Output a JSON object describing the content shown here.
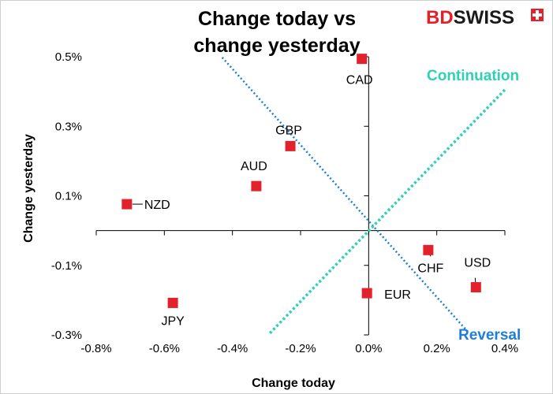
{
  "brand": {
    "logo_prefix": "BD",
    "logo_suffix": "SWISS",
    "logo_color": "#e3212a"
  },
  "chart_data": {
    "type": "scatter",
    "title_lines": [
      "Change today vs",
      "change yesterday"
    ],
    "xlabel": "Change today",
    "ylabel": "Change yesterday",
    "xlim": [
      -0.8,
      0.4
    ],
    "ylim": [
      -0.3,
      0.5
    ],
    "xticks": [
      -0.8,
      -0.6,
      -0.4,
      -0.2,
      0.0,
      0.2,
      0.4
    ],
    "xtick_labels": [
      "-0.8%",
      "-0.6%",
      "-0.4%",
      "-0.2%",
      "0.0%",
      "0.2%",
      "0.4%"
    ],
    "yticks": [
      0.5,
      0.3,
      0.1,
      -0.1,
      -0.3
    ],
    "ytick_labels": [
      "0.5%",
      "0.3%",
      "0.1%",
      "-0.1%",
      "-0.3%"
    ],
    "marker_color": "#e3212a",
    "points": [
      {
        "label": "CAD",
        "x": -0.02,
        "y": 0.494
      },
      {
        "label": "GBP",
        "x": -0.23,
        "y": 0.243
      },
      {
        "label": "AUD",
        "x": -0.33,
        "y": 0.128
      },
      {
        "label": "NZD",
        "x": -0.71,
        "y": 0.076
      },
      {
        "label": "CHF",
        "x": 0.175,
        "y": -0.056
      },
      {
        "label": "USD",
        "x": 0.315,
        "y": -0.163
      },
      {
        "label": "EUR",
        "x": -0.005,
        "y": -0.18
      },
      {
        "label": "JPY",
        "x": -0.575,
        "y": -0.208
      }
    ],
    "annotations": {
      "continuation": {
        "text": "Continuation",
        "color": "#2fd1b3"
      },
      "reversal": {
        "text": "Reversal",
        "color": "#1e7fd6"
      }
    }
  }
}
